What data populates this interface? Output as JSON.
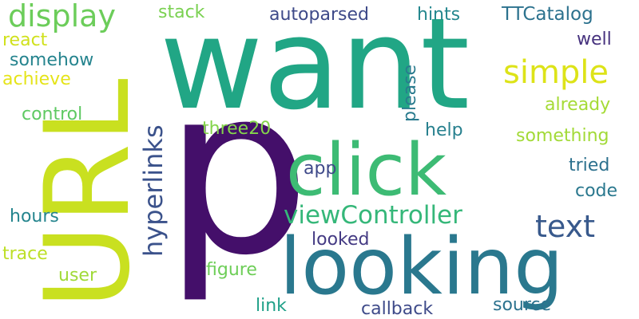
{
  "words": [
    {
      "text": "want",
      "color": "#21a685"
    },
    {
      "text": "p",
      "color": "#440f6a"
    },
    {
      "text": "URL",
      "color": "#c9e020"
    },
    {
      "text": "looking",
      "color": "#2a788e"
    },
    {
      "text": "click",
      "color": "#3dbb74"
    },
    {
      "text": "display",
      "color": "#6ccd5a"
    },
    {
      "text": "simple",
      "color": "#dde318"
    },
    {
      "text": "text",
      "color": "#38598c"
    },
    {
      "text": "viewController",
      "color": "#35b779"
    },
    {
      "text": "hyperlinks",
      "color": "#3b528b"
    },
    {
      "text": "TTCatalog",
      "color": "#2c728e"
    },
    {
      "text": "autoparsed",
      "color": "#3e4a89"
    },
    {
      "text": "hints",
      "color": "#24878e"
    },
    {
      "text": "stack",
      "color": "#7ad151"
    },
    {
      "text": "react",
      "color": "#d0e11c"
    },
    {
      "text": "somehow",
      "color": "#25848e"
    },
    {
      "text": "achieve",
      "color": "#e5e419"
    },
    {
      "text": "control",
      "color": "#5ec962"
    },
    {
      "text": "please",
      "color": "#297b8e"
    },
    {
      "text": "well",
      "color": "#46327e"
    },
    {
      "text": "already",
      "color": "#a5db36"
    },
    {
      "text": "three20",
      "color": "#84d44b"
    },
    {
      "text": "help",
      "color": "#27808e"
    },
    {
      "text": "something",
      "color": "#a2da37"
    },
    {
      "text": "app",
      "color": "#3e4989"
    },
    {
      "text": "tried",
      "color": "#2d718e"
    },
    {
      "text": "code",
      "color": "#2a788e"
    },
    {
      "text": "hours",
      "color": "#25858e"
    },
    {
      "text": "looked",
      "color": "#443a83"
    },
    {
      "text": "trace",
      "color": "#bddf26"
    },
    {
      "text": "figure",
      "color": "#6ece58"
    },
    {
      "text": "user",
      "color": "#a0da39"
    },
    {
      "text": "link",
      "color": "#1fa088"
    },
    {
      "text": "callback",
      "color": "#3e4a89"
    },
    {
      "text": "source",
      "color": "#2c728e"
    }
  ]
}
